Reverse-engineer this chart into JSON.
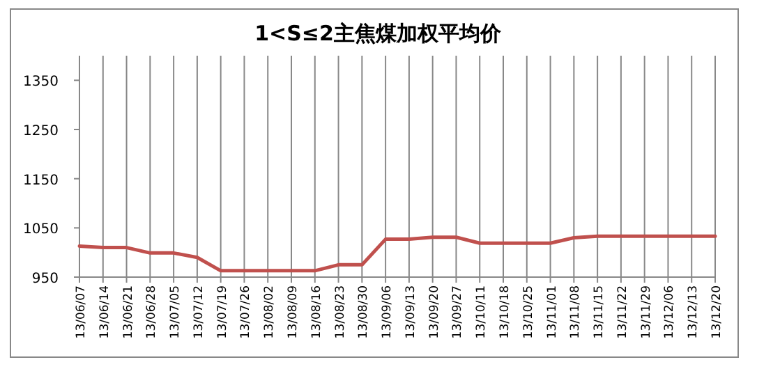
{
  "chart_data": {
    "type": "line",
    "title": "1<S≤2主焦煤加权平均价",
    "categories": [
      "13/06/07",
      "13/06/14",
      "13/06/21",
      "13/06/28",
      "13/07/05",
      "13/07/12",
      "13/07/19",
      "13/07/26",
      "13/08/02",
      "13/08/09",
      "13/08/16",
      "13/08/23",
      "13/08/30",
      "13/09/06",
      "13/09/13",
      "13/09/20",
      "13/09/27",
      "13/10/11",
      "13/10/18",
      "13/10/25",
      "13/11/01",
      "13/11/08",
      "13/11/15",
      "13/11/22",
      "13/11/29",
      "13/12/06",
      "13/12/13",
      "13/12/20"
    ],
    "series": [
      {
        "color": "#c0504d",
        "values": [
          1013,
          1010,
          1010,
          999,
          999,
          990,
          963,
          963,
          963,
          963,
          963,
          975,
          975,
          1027,
          1027,
          1031,
          1031,
          1019,
          1019,
          1019,
          1019,
          1030,
          1033,
          1033,
          1033,
          1033,
          1033,
          1033
        ]
      }
    ],
    "ylim": [
      950,
      1400
    ],
    "yticks": [
      950,
      1050,
      1150,
      1250,
      1350
    ],
    "grid": "x",
    "marker": "none",
    "line_style": "solid"
  }
}
